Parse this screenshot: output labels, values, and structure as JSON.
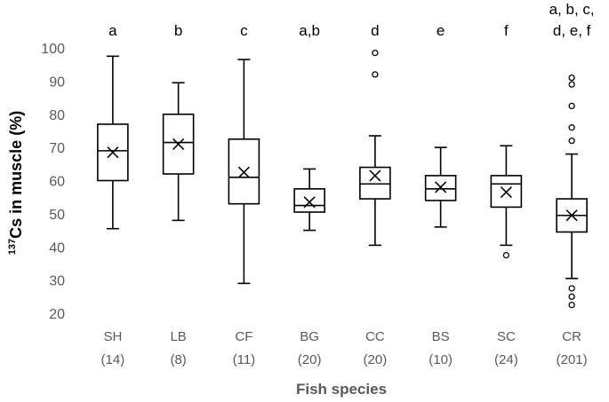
{
  "chart_data": {
    "type": "box",
    "ylabel": {
      "sup": "137",
      "main": "Cs in muscle (%)"
    },
    "xlabel": "Fish species",
    "ylim": [
      20,
      100
    ],
    "yticks": [
      20,
      30,
      40,
      50,
      60,
      70,
      80,
      90,
      100
    ],
    "grid": false,
    "categories": [
      {
        "name": "SH",
        "n": "(14)",
        "sig": [
          "a"
        ],
        "min": 45.5,
        "q1": 60,
        "median": 69,
        "q3": 77,
        "max": 97.5,
        "mean": 68.5,
        "outliers": []
      },
      {
        "name": "LB",
        "n": "(8)",
        "sig": [
          "b"
        ],
        "min": 48,
        "q1": 62,
        "median": 71.5,
        "q3": 80,
        "max": 89.5,
        "mean": 71,
        "outliers": []
      },
      {
        "name": "CF",
        "n": "(11)",
        "sig": [
          "c"
        ],
        "min": 29,
        "q1": 53,
        "median": 61,
        "q3": 72.5,
        "max": 96.5,
        "mean": 62.5,
        "outliers": []
      },
      {
        "name": "BG",
        "n": "(20)",
        "sig": [
          "a,b"
        ],
        "min": 45,
        "q1": 50.5,
        "median": 52.5,
        "q3": 57.5,
        "max": 63.5,
        "mean": 53.5,
        "outliers": []
      },
      {
        "name": "CC",
        "n": "(20)",
        "sig": [
          "d"
        ],
        "min": 40.5,
        "q1": 54.5,
        "median": 59,
        "q3": 64,
        "max": 73.5,
        "mean": 61.5,
        "outliers": [
          92,
          98.5
        ]
      },
      {
        "name": "BS",
        "n": "(10)",
        "sig": [
          "e"
        ],
        "min": 46,
        "q1": 54,
        "median": 57.5,
        "q3": 61.5,
        "max": 70,
        "mean": 58,
        "outliers": []
      },
      {
        "name": "SC",
        "n": "(24)",
        "sig": [
          "f"
        ],
        "min": 40.5,
        "q1": 52,
        "median": 59,
        "q3": 61.5,
        "max": 70.5,
        "mean": 56.5,
        "outliers": [
          37.5
        ]
      },
      {
        "name": "CR",
        "n": "(201)",
        "sig": [
          "a, b, c,",
          "d, e, f"
        ],
        "min": 30.5,
        "q1": 44.5,
        "median": 49.5,
        "q3": 54.5,
        "max": 68,
        "mean": 49.5,
        "outliers": [
          22.5,
          25,
          27.5,
          72,
          76,
          82.5,
          89,
          91
        ]
      }
    ]
  }
}
